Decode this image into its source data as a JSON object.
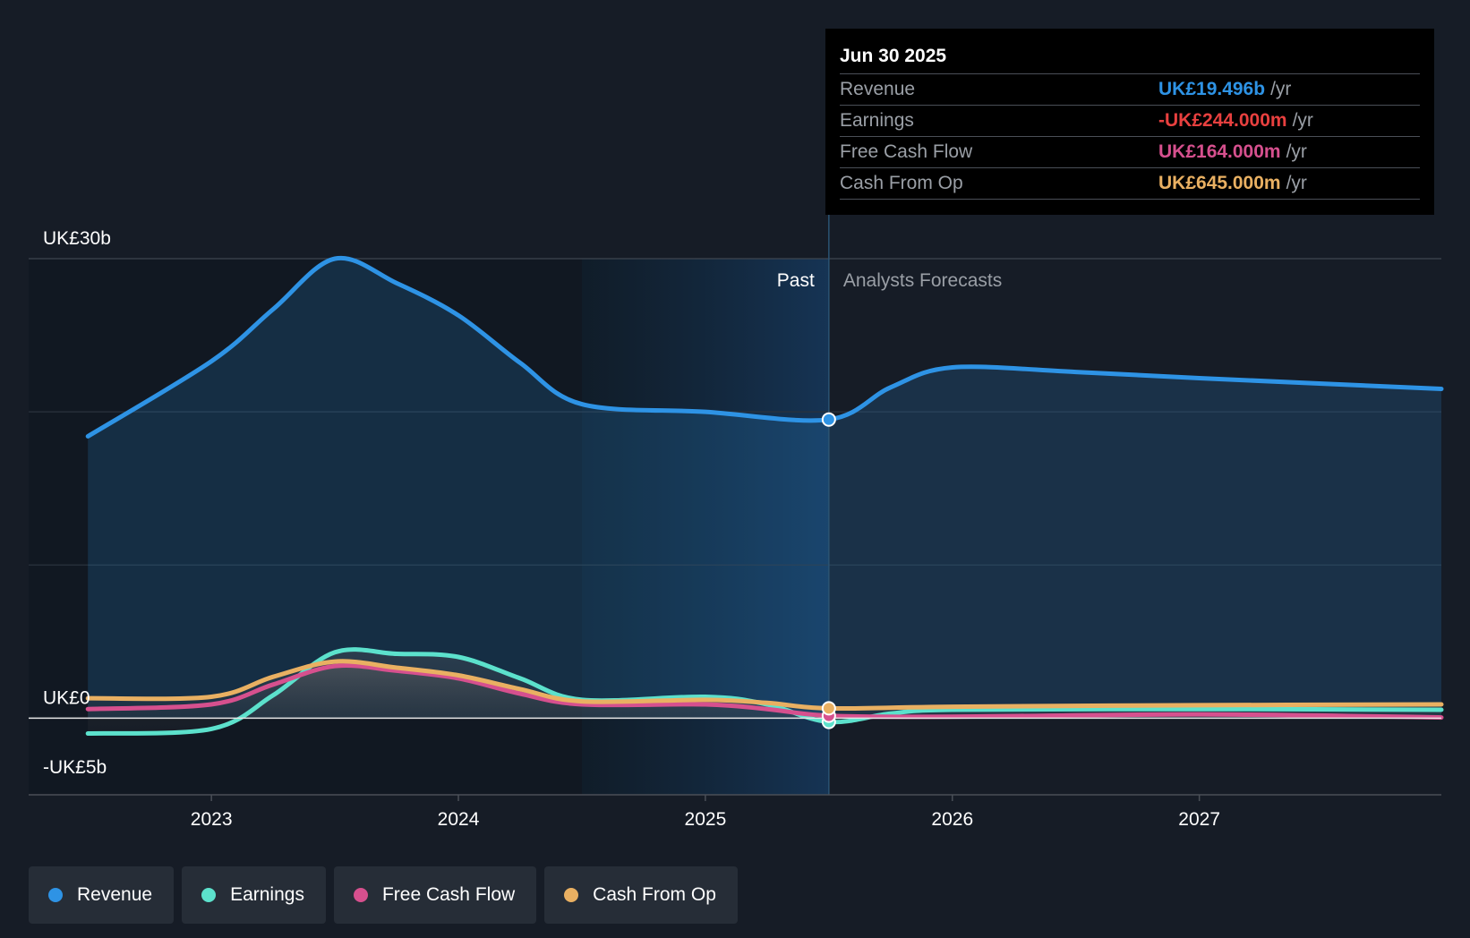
{
  "chart_data": {
    "type": "area",
    "currency": "UK£",
    "y_axis_labels": [
      "UK£30b",
      "UK£0",
      "-UK£5b"
    ],
    "ylim": [
      -5,
      30
    ],
    "y_gridlines": [
      30,
      20,
      10,
      0
    ],
    "x_ticks": [
      "2023",
      "2024",
      "2025",
      "2026",
      "2027"
    ],
    "x_tick_values": [
      2023.0,
      2024.0,
      2025.0,
      2026.0,
      2027.0
    ],
    "xlim": [
      2022.26,
      2027.98
    ],
    "past_start": 2022.5,
    "forecast_highlight_start": 2024.5,
    "divider_date": 2025.5,
    "past_label": "Past",
    "forecast_label": "Analysts Forecasts",
    "series": [
      {
        "name": "Revenue",
        "color": "#2e93e5",
        "points": [
          [
            2022.5,
            18.4
          ],
          [
            2023.0,
            23.3
          ],
          [
            2023.25,
            26.7
          ],
          [
            2023.5,
            30.0
          ],
          [
            2023.75,
            28.4
          ],
          [
            2024.0,
            26.3
          ],
          [
            2024.25,
            23.2
          ],
          [
            2024.5,
            20.5
          ],
          [
            2025.0,
            20.0
          ],
          [
            2025.5,
            19.5
          ],
          [
            2025.75,
            21.6
          ],
          [
            2026.0,
            22.9
          ],
          [
            2026.5,
            22.6
          ],
          [
            2027.0,
            22.2
          ],
          [
            2027.98,
            21.5
          ]
        ]
      },
      {
        "name": "Earnings",
        "color": "#5ce1cc",
        "points": [
          [
            2022.5,
            -1.0
          ],
          [
            2023.0,
            -0.7
          ],
          [
            2023.25,
            1.5
          ],
          [
            2023.5,
            4.3
          ],
          [
            2023.75,
            4.2
          ],
          [
            2024.0,
            4.0
          ],
          [
            2024.25,
            2.6
          ],
          [
            2024.5,
            1.2
          ],
          [
            2025.0,
            1.4
          ],
          [
            2025.25,
            0.9
          ],
          [
            2025.5,
            -0.244
          ],
          [
            2025.75,
            0.3
          ],
          [
            2026.0,
            0.55
          ],
          [
            2027.0,
            0.6
          ],
          [
            2027.98,
            0.55
          ]
        ]
      },
      {
        "name": "Free Cash Flow",
        "color": "#d6508e",
        "points": [
          [
            2022.5,
            0.6
          ],
          [
            2023.0,
            0.9
          ],
          [
            2023.25,
            2.2
          ],
          [
            2023.5,
            3.4
          ],
          [
            2023.75,
            3.1
          ],
          [
            2024.0,
            2.6
          ],
          [
            2024.25,
            1.6
          ],
          [
            2024.5,
            0.9
          ],
          [
            2025.0,
            0.9
          ],
          [
            2025.25,
            0.6
          ],
          [
            2025.5,
            0.164
          ],
          [
            2026.0,
            0.1
          ],
          [
            2027.0,
            0.25
          ],
          [
            2027.98,
            0.05
          ]
        ]
      },
      {
        "name": "Cash From Op",
        "color": "#e9b062",
        "points": [
          [
            2022.5,
            1.3
          ],
          [
            2023.0,
            1.4
          ],
          [
            2023.25,
            2.7
          ],
          [
            2023.5,
            3.7
          ],
          [
            2023.75,
            3.3
          ],
          [
            2024.0,
            2.8
          ],
          [
            2024.25,
            1.9
          ],
          [
            2024.5,
            1.1
          ],
          [
            2025.0,
            1.2
          ],
          [
            2025.25,
            1.0
          ],
          [
            2025.5,
            0.645
          ],
          [
            2026.0,
            0.75
          ],
          [
            2027.0,
            0.85
          ],
          [
            2027.98,
            0.9
          ]
        ]
      }
    ]
  },
  "tooltip": {
    "date": "Jun 30 2025",
    "rows": [
      {
        "label": "Revenue",
        "value": "UK£19.496b",
        "unit": "/yr",
        "color": "#2e93e5"
      },
      {
        "label": "Earnings",
        "value": "-UK£244.000m",
        "unit": "/yr",
        "color": "#e8403f"
      },
      {
        "label": "Free Cash Flow",
        "value": "UK£164.000m",
        "unit": "/yr",
        "color": "#d6508e"
      },
      {
        "label": "Cash From Op",
        "value": "UK£645.000m",
        "unit": "/yr",
        "color": "#e9b062"
      }
    ]
  },
  "legend": [
    {
      "label": "Revenue",
      "color": "#2e93e5"
    },
    {
      "label": "Earnings",
      "color": "#5ce1cc"
    },
    {
      "label": "Free Cash Flow",
      "color": "#d6508e"
    },
    {
      "label": "Cash From Op",
      "color": "#e9b062"
    }
  ]
}
